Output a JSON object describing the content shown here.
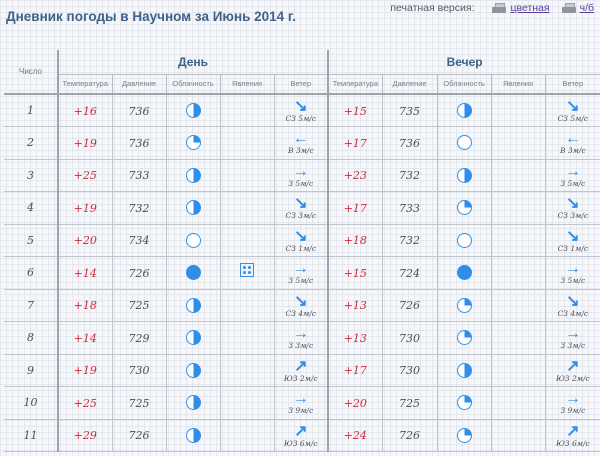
{
  "header": {
    "title": "Дневник погоды в Научном за Июнь 2014 г.",
    "print_label": "печатная версия:",
    "print_color": "цветная",
    "print_bw": "ч/б"
  },
  "table": {
    "num_header": "Число",
    "day_header": "День",
    "evening_header": "Вечер",
    "columns": [
      "Температура",
      "Давление",
      "Облачность",
      "Явления",
      "Ветер"
    ],
    "rows": [
      {
        "n": "1",
        "d": {
          "t": "+16",
          "p": "736",
          "c": "half",
          "ph": "",
          "a": "↘",
          "w": "СЗ 5м/с"
        },
        "e": {
          "t": "+15",
          "p": "735",
          "c": "half",
          "ph": "",
          "a": "↘",
          "w": "СЗ 5м/с"
        }
      },
      {
        "n": "2",
        "d": {
          "t": "+19",
          "p": "736",
          "c": "quarter",
          "ph": "",
          "a": "←",
          "w": "В 3м/с"
        },
        "e": {
          "t": "+17",
          "p": "736",
          "c": "clear",
          "ph": "",
          "a": "←",
          "w": "В 3м/с"
        }
      },
      {
        "n": "3",
        "d": {
          "t": "+25",
          "p": "733",
          "c": "half",
          "ph": "",
          "a": "→",
          "w": "З 5м/с"
        },
        "e": {
          "t": "+23",
          "p": "732",
          "c": "half",
          "ph": "",
          "a": "→",
          "w": "З 5м/с"
        }
      },
      {
        "n": "4",
        "d": {
          "t": "+19",
          "p": "732",
          "c": "half",
          "ph": "",
          "a": "↘",
          "w": "СЗ 3м/с"
        },
        "e": {
          "t": "+17",
          "p": "733",
          "c": "quarter",
          "ph": "",
          "a": "↘",
          "w": "СЗ 3м/с"
        }
      },
      {
        "n": "5",
        "d": {
          "t": "+20",
          "p": "734",
          "c": "clear",
          "ph": "",
          "a": "↘",
          "w": "СЗ 1м/с"
        },
        "e": {
          "t": "+18",
          "p": "732",
          "c": "clear",
          "ph": "",
          "a": "↘",
          "w": "СЗ 1м/с"
        }
      },
      {
        "n": "6",
        "d": {
          "t": "+14",
          "p": "726",
          "c": "full",
          "ph": "rain",
          "a": "→",
          "w": "З 5м/с"
        },
        "e": {
          "t": "+15",
          "p": "724",
          "c": "full",
          "ph": "",
          "a": "→",
          "w": "З 5м/с"
        }
      },
      {
        "n": "7",
        "d": {
          "t": "+18",
          "p": "725",
          "c": "half",
          "ph": "",
          "a": "↘",
          "w": "СЗ 4м/с"
        },
        "e": {
          "t": "+13",
          "p": "726",
          "c": "quarter",
          "ph": "",
          "a": "↘",
          "w": "СЗ 4м/с"
        }
      },
      {
        "n": "8",
        "d": {
          "t": "+14",
          "p": "729",
          "c": "half",
          "ph": "",
          "a": "→",
          "w": "З 3м/с"
        },
        "e": {
          "t": "+13",
          "p": "730",
          "c": "quarter",
          "ph": "",
          "a": "→",
          "w": "З 3м/с"
        }
      },
      {
        "n": "9",
        "d": {
          "t": "+19",
          "p": "730",
          "c": "half",
          "ph": "",
          "a": "↗",
          "w": "ЮЗ 2м/с"
        },
        "e": {
          "t": "+17",
          "p": "730",
          "c": "half",
          "ph": "",
          "a": "↗",
          "w": "ЮЗ 2м/с"
        }
      },
      {
        "n": "10",
        "d": {
          "t": "+25",
          "p": "725",
          "c": "half",
          "ph": "",
          "a": "→",
          "w": "З 9м/с"
        },
        "e": {
          "t": "+20",
          "p": "725",
          "c": "quarter",
          "ph": "",
          "a": "→",
          "w": "З 9м/с"
        }
      },
      {
        "n": "11",
        "d": {
          "t": "+29",
          "p": "726",
          "c": "half",
          "ph": "",
          "a": "↗",
          "w": "ЮЗ 6м/с"
        },
        "e": {
          "t": "+24",
          "p": "726",
          "c": "quarter",
          "ph": "",
          "a": "↗",
          "w": "ЮЗ 6м/с"
        }
      }
    ]
  },
  "colors": {
    "title": "#3e6288",
    "temperature": "#d2283c",
    "icon_blue": "#2f8ee8",
    "link": "#5a3ea0"
  }
}
